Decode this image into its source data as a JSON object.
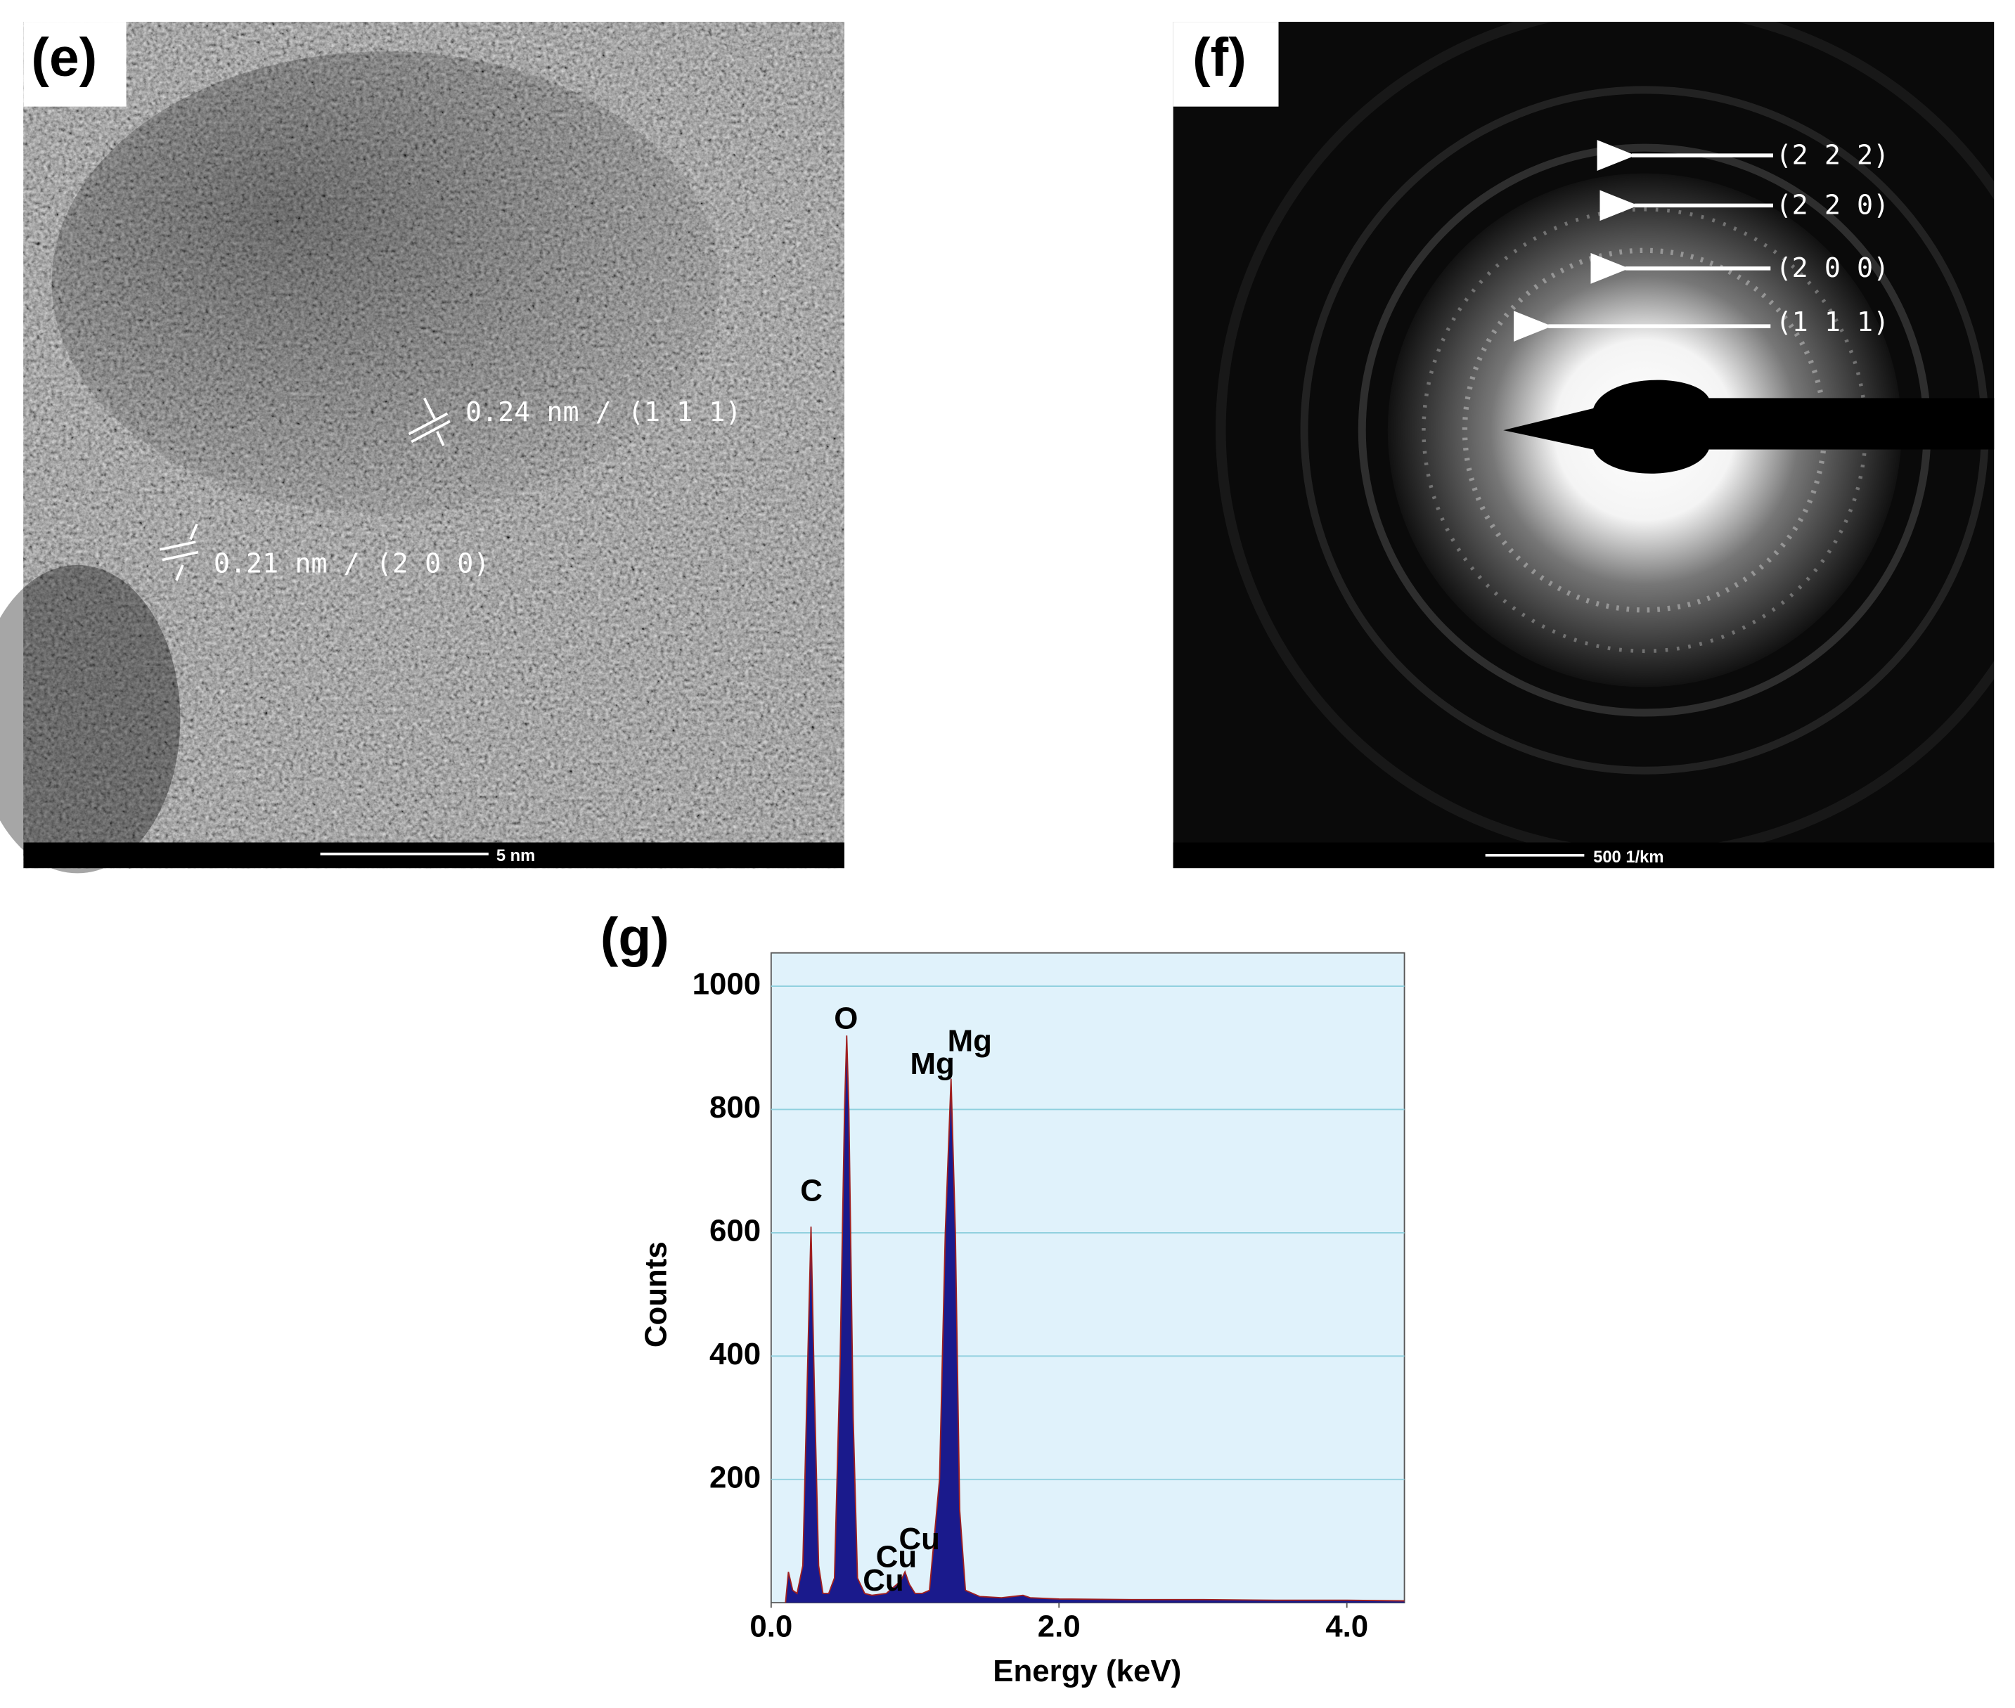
{
  "panels": {
    "e": {
      "label": "(e)",
      "annotations": [
        "0.24 nm / (1 1 1)",
        "0.21 nm / (2 0 0)"
      ],
      "scale_bar": "5 nm"
    },
    "f": {
      "label": "(f)",
      "rings": [
        "(2 2 2)",
        "(2 2 0)",
        "(2 0 0)",
        "(1 1 1)"
      ],
      "scale_bar": "500 1/km"
    }
  },
  "chart_data": {
    "type": "area",
    "panel_label": "(g)",
    "x_label": "Energy (keV)",
    "y_label": "Counts",
    "xlim": [
      0,
      4.4
    ],
    "ylim": [
      0,
      1054
    ],
    "xticks": [
      {
        "value": 0,
        "label": "0.0"
      },
      {
        "value": 2,
        "label": "2.0"
      },
      {
        "value": 4,
        "label": "4.0"
      }
    ],
    "yticks": [
      200,
      400,
      600,
      800,
      1000
    ],
    "grid": true,
    "series": [
      {
        "color": "#1a1a8c",
        "x": [
          0.1,
          0.12,
          0.15,
          0.18,
          0.22,
          0.25,
          0.277,
          0.3,
          0.33,
          0.36,
          0.4,
          0.44,
          0.48,
          0.51,
          0.525,
          0.54,
          0.57,
          0.6,
          0.65,
          0.7,
          0.8,
          0.85,
          0.9,
          0.93,
          0.96,
          1.0,
          1.05,
          1.1,
          1.17,
          1.21,
          1.25,
          1.28,
          1.31,
          1.35,
          1.45,
          1.6,
          1.75,
          1.8,
          2.0,
          2.5,
          3.0,
          3.5,
          4.0,
          4.4
        ],
        "values": [
          0,
          50,
          20,
          15,
          60,
          350,
          610,
          350,
          60,
          15,
          15,
          40,
          400,
          800,
          920,
          800,
          300,
          40,
          15,
          12,
          15,
          25,
          35,
          50,
          30,
          15,
          15,
          20,
          200,
          600,
          850,
          600,
          150,
          20,
          10,
          8,
          12,
          8,
          6,
          5,
          5,
          4,
          4,
          3
        ]
      }
    ],
    "annotations": [
      {
        "text": "C",
        "x": 0.28,
        "y": 665
      },
      {
        "text": "O",
        "x": 0.52,
        "y": 944
      },
      {
        "text": "Mg",
        "x": 1.12,
        "y": 871
      },
      {
        "text": "Mg",
        "x": 1.38,
        "y": 908
      },
      {
        "text": "Cu",
        "x": 0.78,
        "y": 33
      },
      {
        "text": "Cu",
        "x": 0.87,
        "y": 71
      },
      {
        "text": "Cu",
        "x": 1.03,
        "y": 100
      }
    ]
  }
}
